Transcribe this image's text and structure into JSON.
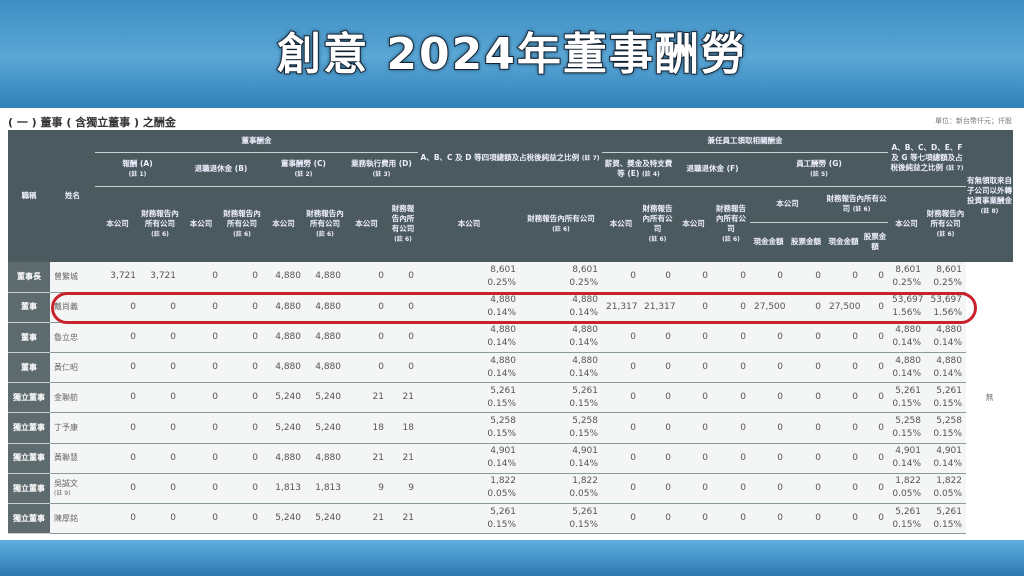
{
  "title": "創意 2024年董事酬勞",
  "section_title": "( 一 ) 董事 ( 含獨立董事 ) 之酬金",
  "unit": "單位：新台幣仟元；仟股",
  "headers": {
    "role": "職稱",
    "name": "姓名",
    "director_pay": "董事酬金",
    "abcd": "A、B、C 及 D 等四項總額及占稅後純益之比例",
    "abcd_note": "(註 7)",
    "employee_pay": "兼任員工領取相關酬金",
    "abcdefg": "A、B、C、D、E、F 及 G 等七項總額及占稅後純益之比例",
    "abcdefg_note": "(註 7)",
    "other": "有無領取來自子公司以外轉投資事業酬金",
    "other_note": "(註 8)",
    "a": "報酬 (A)",
    "a_note": "(註 1)",
    "b": "退職退休金 (B)",
    "c": "董事酬勞 (C)",
    "c_note": "(註 2)",
    "d": "業務執行費用 (D)",
    "d_note": "(註 3)",
    "e": "薪資、獎金及特支費等 (E)",
    "e_note": "(註 4)",
    "f": "退職退休金 (F)",
    "g": "員工酬勞 (G)",
    "g_note": "(註 5)",
    "company": "本公司",
    "all_companies": "財務報告內所有公司",
    "all_note": "(註 6)",
    "cash": "現金金額",
    "stock": "股票金額"
  },
  "rows": [
    {
      "role": "董事長",
      "name": "曾繁城",
      "v": [
        "3,721",
        "3,721",
        "0",
        "0",
        "4,880",
        "4,880",
        "0",
        "0",
        [
          "8,601",
          "0.25%"
        ],
        [
          "8,601",
          "0.25%"
        ],
        "0",
        "0",
        "0",
        "0",
        "0",
        "0",
        "0",
        "0",
        [
          "8,601",
          "0.25%"
        ],
        [
          "8,601",
          "0.25%"
        ]
      ]
    },
    {
      "role": "董事",
      "name": "戴尚義",
      "v": [
        "0",
        "0",
        "0",
        "0",
        "4,880",
        "4,880",
        "0",
        "0",
        [
          "4,880",
          "0.14%"
        ],
        [
          "4,880",
          "0.14%"
        ],
        "21,317",
        "21,317",
        "0",
        "0",
        "27,500",
        "0",
        "27,500",
        "0",
        [
          "53,697",
          "1.56%"
        ],
        [
          "53,697",
          "1.56%"
        ]
      ]
    },
    {
      "role": "董事",
      "name": "魯立忠",
      "v": [
        "0",
        "0",
        "0",
        "0",
        "4,880",
        "4,880",
        "0",
        "0",
        [
          "4,880",
          "0.14%"
        ],
        [
          "4,880",
          "0.14%"
        ],
        "0",
        "0",
        "0",
        "0",
        "0",
        "0",
        "0",
        "0",
        [
          "4,880",
          "0.14%"
        ],
        [
          "4,880",
          "0.14%"
        ]
      ]
    },
    {
      "role": "董事",
      "name": "黃仁昭",
      "v": [
        "0",
        "0",
        "0",
        "0",
        "4,880",
        "4,880",
        "0",
        "0",
        [
          "4,880",
          "0.14%"
        ],
        [
          "4,880",
          "0.14%"
        ],
        "0",
        "0",
        "0",
        "0",
        "0",
        "0",
        "0",
        "0",
        [
          "4,880",
          "0.14%"
        ],
        [
          "4,880",
          "0.14%"
        ]
      ]
    },
    {
      "role": "獨立董事",
      "name": "金聯舫",
      "v": [
        "0",
        "0",
        "0",
        "0",
        "5,240",
        "5,240",
        "21",
        "21",
        [
          "5,261",
          "0.15%"
        ],
        [
          "5,261",
          "0.15%"
        ],
        "0",
        "0",
        "0",
        "0",
        "0",
        "0",
        "0",
        "0",
        [
          "5,261",
          "0.15%"
        ],
        [
          "5,261",
          "0.15%"
        ]
      ]
    },
    {
      "role": "獨立董事",
      "name": "丁予康",
      "v": [
        "0",
        "0",
        "0",
        "0",
        "5,240",
        "5,240",
        "18",
        "18",
        [
          "5,258",
          "0.15%"
        ],
        [
          "5,258",
          "0.15%"
        ],
        "0",
        "0",
        "0",
        "0",
        "0",
        "0",
        "0",
        "0",
        [
          "5,258",
          "0.15%"
        ],
        [
          "5,258",
          "0.15%"
        ]
      ]
    },
    {
      "role": "獨立董事",
      "name": "黃聯慧",
      "v": [
        "0",
        "0",
        "0",
        "0",
        "4,880",
        "4,880",
        "21",
        "21",
        [
          "4,901",
          "0.14%"
        ],
        [
          "4,901",
          "0.14%"
        ],
        "0",
        "0",
        "0",
        "0",
        "0",
        "0",
        "0",
        "0",
        [
          "4,901",
          "0.14%"
        ],
        [
          "4,901",
          "0.14%"
        ]
      ]
    },
    {
      "role": "獨立董事",
      "name": "吳誠文",
      "note": "(註 9)",
      "v": [
        "0",
        "0",
        "0",
        "0",
        "1,813",
        "1,813",
        "9",
        "9",
        [
          "1,822",
          "0.05%"
        ],
        [
          "1,822",
          "0.05%"
        ],
        "0",
        "0",
        "0",
        "0",
        "0",
        "0",
        "0",
        "0",
        [
          "1,822",
          "0.05%"
        ],
        [
          "1,822",
          "0.05%"
        ]
      ]
    },
    {
      "role": "獨立董事",
      "name": "陳厚銘",
      "v": [
        "0",
        "0",
        "0",
        "0",
        "5,240",
        "5,240",
        "21",
        "21",
        [
          "5,261",
          "0.15%"
        ],
        [
          "5,261",
          "0.15%"
        ],
        "0",
        "0",
        "0",
        "0",
        "0",
        "0",
        "0",
        "0",
        [
          "5,261",
          "0.15%"
        ],
        [
          "5,261",
          "0.15%"
        ]
      ]
    }
  ],
  "other_value": "無",
  "highlight_color": "#c8222a"
}
